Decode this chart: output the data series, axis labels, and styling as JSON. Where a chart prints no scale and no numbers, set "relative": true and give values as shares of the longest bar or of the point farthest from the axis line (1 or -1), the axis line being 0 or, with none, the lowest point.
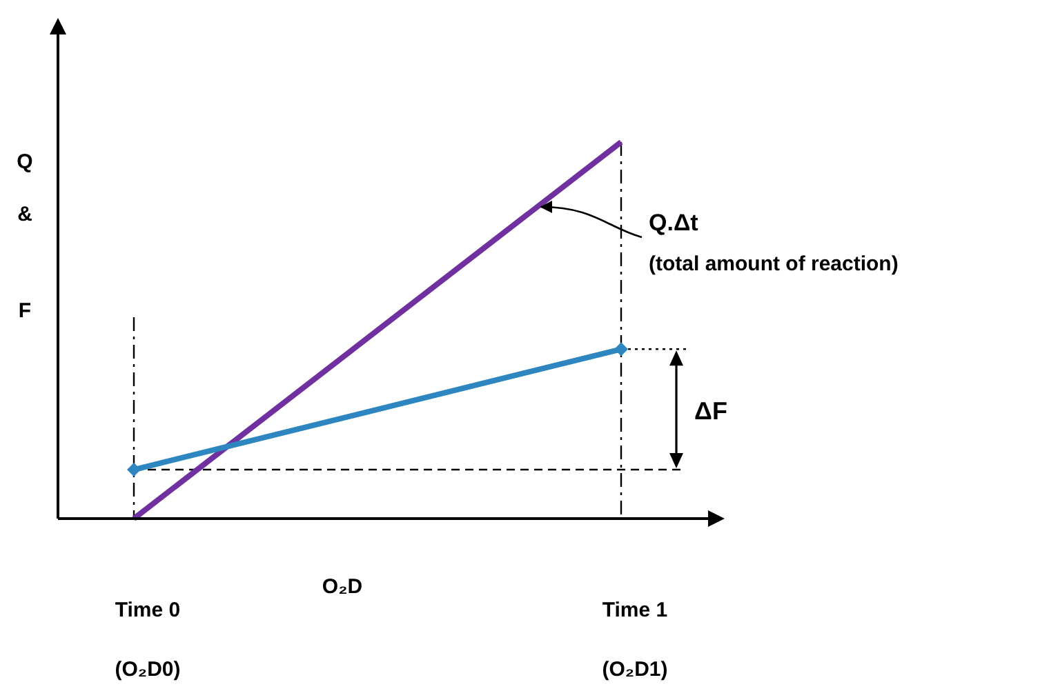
{
  "chart_data": {
    "type": "line",
    "relative": true,
    "xlabel": "O₂D",
    "ylabel": "Q & F",
    "categories": [
      "Time 0\n(O₂D0)",
      "Time 1\n(O₂D1)"
    ],
    "series": [
      {
        "color": "#7030a0",
        "values": [
          0,
          1
        ],
        "marker": "none"
      },
      {
        "color": "#2e86c1",
        "values": [
          0.13,
          0.45
        ],
        "marker": "diamond"
      }
    ],
    "ref_lines": [
      {
        "axis": "x",
        "value": "Time 0\n(O₂D0)",
        "line_style": "dashdot",
        "color": "#000000"
      },
      {
        "axis": "x",
        "value": "Time 1\n(O₂D1)",
        "line_style": "dashdot",
        "color": "#000000"
      },
      {
        "axis": "y",
        "value": 0.13,
        "line_style": "dashed",
        "color": "#000000"
      },
      {
        "axis": "y",
        "value": 0.45,
        "line_style": "dotted",
        "color": "#000000"
      }
    ],
    "annotations": [
      "Q.Δt",
      "(total amount of reaction)",
      "ΔF"
    ]
  }
}
